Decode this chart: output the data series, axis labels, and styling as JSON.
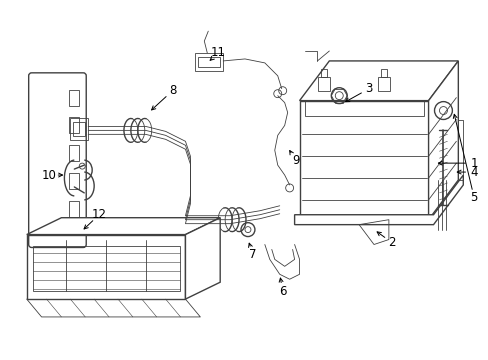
{
  "bg_color": "#ffffff",
  "line_color": "#404040",
  "lw_main": 1.0,
  "lw_thin": 0.6,
  "lw_thick": 1.5,
  "label_fontsize": 8.5,
  "fig_width": 4.89,
  "fig_height": 3.6,
  "dpi": 100
}
